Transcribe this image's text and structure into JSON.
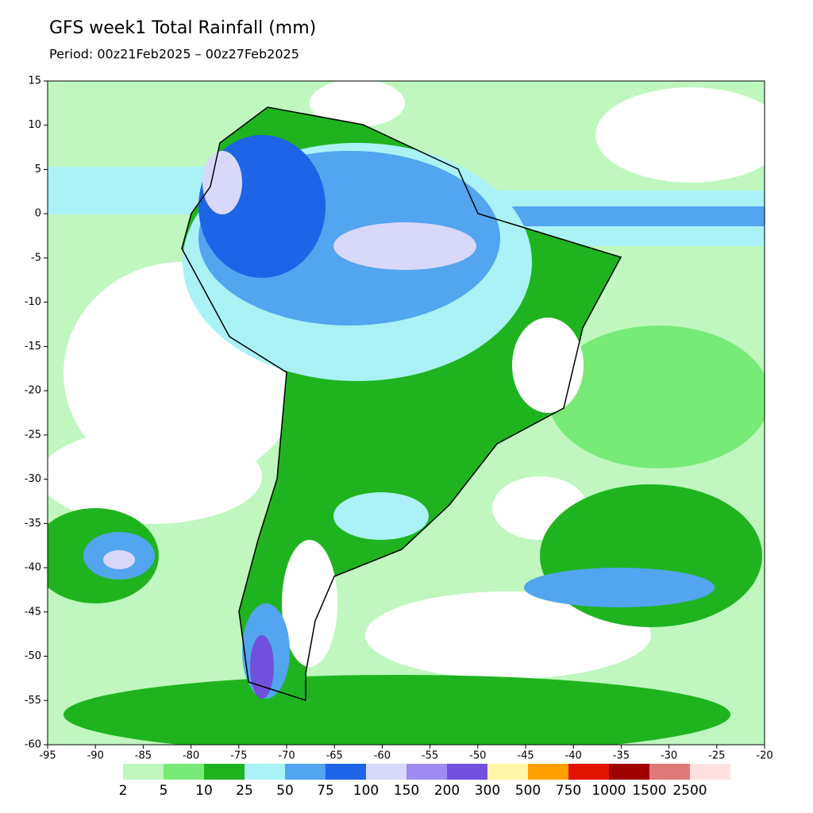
{
  "header": {
    "title": "GFS week1 Total Rainfall (mm)",
    "subtitle": "Period: 00z21Feb2025 – 00z27Feb2025"
  },
  "map": {
    "xlim": [
      -95,
      -20
    ],
    "ylim": [
      -60,
      15
    ],
    "xticks": [
      -95,
      -90,
      -85,
      -80,
      -75,
      -70,
      -65,
      -60,
      -55,
      -50,
      -45,
      -40,
      -35,
      -30,
      -25,
      -20
    ],
    "yticks": [
      15,
      10,
      5,
      0,
      -5,
      -10,
      -15,
      -20,
      -25,
      -30,
      -35,
      -40,
      -45,
      -50,
      -55,
      -60
    ]
  },
  "colorbar": {
    "levels": [
      2,
      5,
      10,
      25,
      50,
      75,
      100,
      150,
      200,
      300,
      500,
      750,
      1000,
      1500,
      2500
    ],
    "colors": [
      "#bff7bf",
      "#78ea78",
      "#1fb41f",
      "#aaf2f6",
      "#52a5ee",
      "#1e64e6",
      "#d8d8fa",
      "#a08cf0",
      "#7050dc",
      "#fff6a8",
      "#ffa000",
      "#e11400",
      "#a00000",
      "#e07878",
      "#ffe0e0"
    ]
  }
}
